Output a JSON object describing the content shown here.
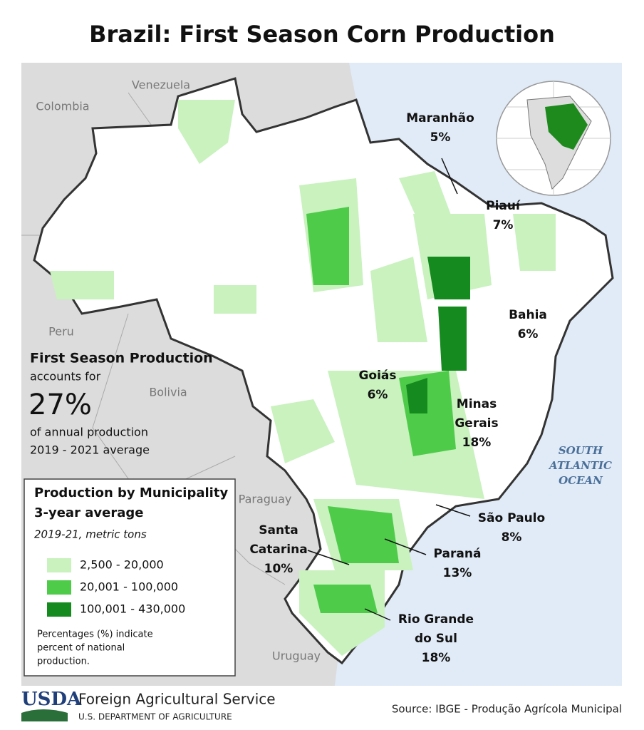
{
  "title": "Brazil: First Season Corn Production",
  "countries": [
    {
      "name": "Venezuela"
    },
    {
      "name": "Colombia"
    },
    {
      "name": "Peru"
    },
    {
      "name": "Bolivia"
    },
    {
      "name": "Paraguay"
    },
    {
      "name": "Uruguay"
    }
  ],
  "ocean": [
    "SOUTH",
    "ATLANTIC",
    "OCEAN"
  ],
  "states": [
    {
      "name": [
        "Maranhão"
      ],
      "share": "5%"
    },
    {
      "name": [
        "Piauí"
      ],
      "share": "7%"
    },
    {
      "name": [
        "Bahia"
      ],
      "share": "6%"
    },
    {
      "name": [
        "Goiás"
      ],
      "share": "6%"
    },
    {
      "name": [
        "Minas",
        "Gerais"
      ],
      "share": "18%"
    },
    {
      "name": [
        "São Paulo"
      ],
      "share": "8%"
    },
    {
      "name": [
        "Paraná"
      ],
      "share": "13%"
    },
    {
      "name": [
        "Santa",
        "Catarina"
      ],
      "share": "10%"
    },
    {
      "name": [
        "Rio Grande",
        "do Sul"
      ],
      "share": "18%"
    }
  ],
  "summary": {
    "heading": "First Season Production",
    "lead": "accounts for",
    "share": "27%",
    "lines": [
      "of annual production",
      "2019 - 2021 average"
    ]
  },
  "legend": {
    "title": [
      "Production by Municipality",
      "3-year average"
    ],
    "subtitle": "2019-21, metric tons",
    "items": [
      {
        "label": "2,500 - 20,000",
        "color": "#c9f2bf"
      },
      {
        "label": "20,001 - 100,000",
        "color": "#4fcb4a"
      },
      {
        "label": "100,001 - 430,000",
        "color": "#158a1e"
      }
    ],
    "note": [
      "Percentages (%) indicate",
      "percent of national",
      "production."
    ]
  },
  "footer": {
    "logo": "USDA",
    "agency": "Foreign Agricultural Service",
    "department": "U.S. DEPARTMENT OF AGRICULTURE",
    "source": "Source: IBGE - Produção Agrícola Municipal"
  }
}
